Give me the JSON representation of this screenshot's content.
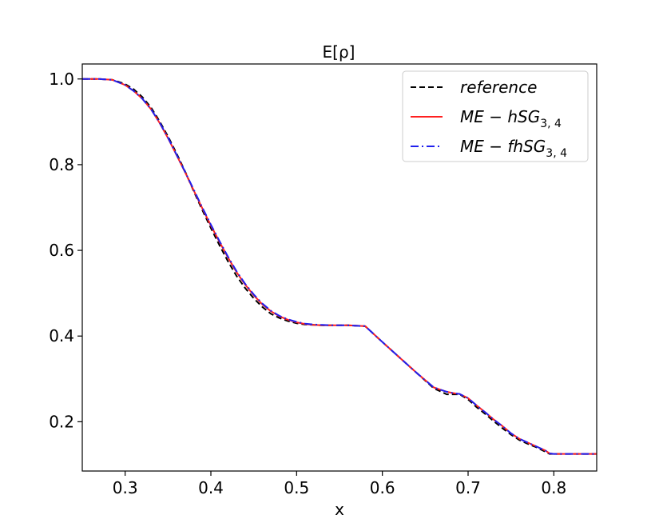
{
  "chart_data": {
    "type": "line",
    "title": "E[ρ]",
    "xlabel": "x",
    "ylabel": "",
    "xlim": [
      0.25,
      0.85
    ],
    "ylim": [
      0.085,
      1.035
    ],
    "xticks": [
      0.3,
      0.4,
      0.5,
      0.6,
      0.7,
      0.8
    ],
    "xtick_labels": [
      "0.3",
      "0.4",
      "0.5",
      "0.6",
      "0.7",
      "0.8"
    ],
    "yticks": [
      0.2,
      0.4,
      0.6,
      0.8,
      1.0
    ],
    "ytick_labels": [
      "0.2",
      "0.4",
      "0.6",
      "0.8",
      "1.0"
    ],
    "grid": false,
    "legend_position": "top-right",
    "series": [
      {
        "name": "reference",
        "legend_main": "reference",
        "legend_sub": "",
        "color": "#000000",
        "style": "dashed",
        "x": [
          0.25,
          0.27,
          0.285,
          0.29,
          0.3,
          0.31,
          0.32,
          0.33,
          0.34,
          0.35,
          0.36,
          0.37,
          0.38,
          0.39,
          0.4,
          0.41,
          0.42,
          0.43,
          0.44,
          0.45,
          0.46,
          0.47,
          0.48,
          0.49,
          0.5,
          0.51,
          0.52,
          0.53,
          0.54,
          0.56,
          0.58,
          0.6,
          0.62,
          0.64,
          0.66,
          0.675,
          0.68,
          0.685,
          0.69,
          0.7,
          0.71,
          0.72,
          0.73,
          0.74,
          0.75,
          0.76,
          0.77,
          0.78,
          0.79,
          0.795,
          0.8,
          0.85
        ],
        "y": [
          1.0,
          1.0,
          0.998,
          0.995,
          0.988,
          0.976,
          0.958,
          0.934,
          0.902,
          0.866,
          0.826,
          0.784,
          0.738,
          0.694,
          0.652,
          0.612,
          0.574,
          0.54,
          0.512,
          0.488,
          0.468,
          0.452,
          0.442,
          0.435,
          0.43,
          0.427,
          0.426,
          0.425,
          0.425,
          0.425,
          0.423,
          0.386,
          0.35,
          0.314,
          0.278,
          0.264,
          0.264,
          0.264,
          0.264,
          0.252,
          0.234,
          0.218,
          0.201,
          0.185,
          0.17,
          0.157,
          0.148,
          0.14,
          0.13,
          0.125,
          0.125,
          0.125
        ]
      },
      {
        "name": "ME − hSG3, 4",
        "legend_main": "ME − hSG",
        "legend_sub": "3, 4",
        "color": "#ff2020",
        "style": "solid",
        "x": [
          0.25,
          0.27,
          0.285,
          0.29,
          0.3,
          0.31,
          0.32,
          0.33,
          0.34,
          0.35,
          0.36,
          0.37,
          0.38,
          0.39,
          0.4,
          0.41,
          0.42,
          0.43,
          0.44,
          0.45,
          0.46,
          0.47,
          0.48,
          0.49,
          0.5,
          0.51,
          0.52,
          0.53,
          0.54,
          0.56,
          0.58,
          0.6,
          0.62,
          0.64,
          0.66,
          0.675,
          0.68,
          0.685,
          0.69,
          0.7,
          0.71,
          0.72,
          0.73,
          0.74,
          0.75,
          0.76,
          0.77,
          0.78,
          0.79,
          0.795,
          0.8,
          0.85
        ],
        "y": [
          1.0,
          1.0,
          0.998,
          0.994,
          0.986,
          0.972,
          0.954,
          0.93,
          0.898,
          0.862,
          0.822,
          0.782,
          0.74,
          0.698,
          0.658,
          0.62,
          0.583,
          0.549,
          0.52,
          0.495,
          0.474,
          0.458,
          0.446,
          0.438,
          0.432,
          0.428,
          0.426,
          0.425,
          0.425,
          0.425,
          0.423,
          0.386,
          0.35,
          0.314,
          0.28,
          0.27,
          0.268,
          0.266,
          0.265,
          0.255,
          0.238,
          0.222,
          0.205,
          0.19,
          0.173,
          0.16,
          0.151,
          0.142,
          0.133,
          0.126,
          0.125,
          0.125
        ]
      },
      {
        "name": "ME − fhSG3, 4",
        "legend_main": "ME − fhSG",
        "legend_sub": "3, 4",
        "color": "#2020ee",
        "style": "dashdot",
        "x": [
          0.25,
          0.27,
          0.285,
          0.29,
          0.3,
          0.31,
          0.32,
          0.33,
          0.34,
          0.35,
          0.36,
          0.37,
          0.38,
          0.39,
          0.4,
          0.41,
          0.42,
          0.43,
          0.44,
          0.45,
          0.46,
          0.47,
          0.48,
          0.49,
          0.5,
          0.51,
          0.52,
          0.53,
          0.54,
          0.56,
          0.58,
          0.6,
          0.62,
          0.64,
          0.66,
          0.675,
          0.68,
          0.685,
          0.69,
          0.7,
          0.71,
          0.72,
          0.73,
          0.74,
          0.75,
          0.76,
          0.77,
          0.78,
          0.79,
          0.795,
          0.8,
          0.85
        ],
        "y": [
          1.0,
          1.0,
          0.998,
          0.994,
          0.986,
          0.972,
          0.954,
          0.93,
          0.899,
          0.863,
          0.823,
          0.783,
          0.742,
          0.7,
          0.66,
          0.622,
          0.585,
          0.551,
          0.522,
          0.497,
          0.476,
          0.459,
          0.447,
          0.439,
          0.433,
          0.429,
          0.427,
          0.426,
          0.425,
          0.425,
          0.423,
          0.386,
          0.35,
          0.314,
          0.28,
          0.27,
          0.268,
          0.266,
          0.265,
          0.255,
          0.238,
          0.222,
          0.205,
          0.19,
          0.173,
          0.16,
          0.151,
          0.142,
          0.133,
          0.126,
          0.125,
          0.125
        ]
      }
    ]
  }
}
